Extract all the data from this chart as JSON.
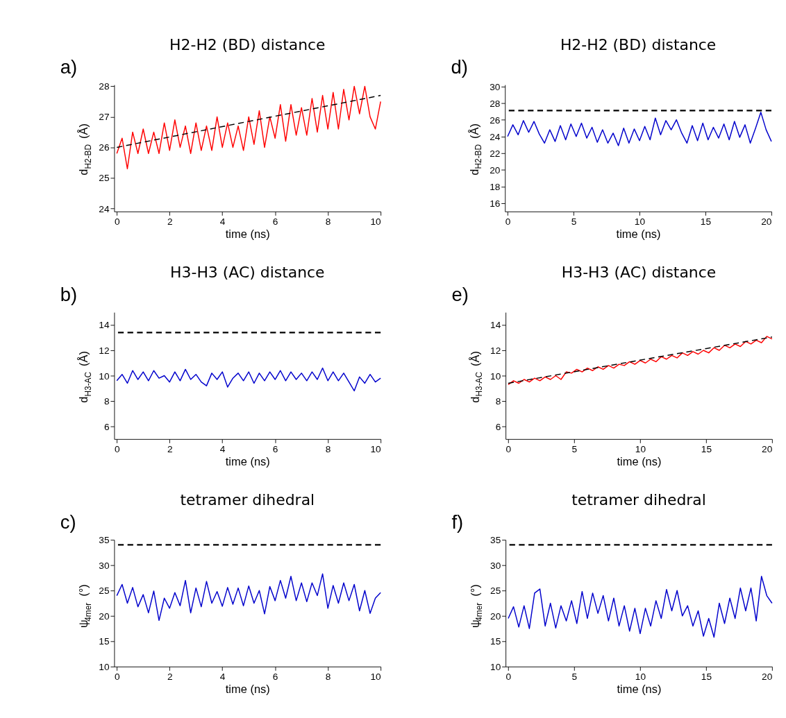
{
  "chart_data": [
    {
      "type": "line",
      "title": "H2-H2 (BD) distance",
      "xlabel": "time (ns)",
      "ylabel": "d$_{H2-BD}$ (Å)",
      "annotations": [
        "a)"
      ],
      "xlim": [
        -0.1,
        10
      ],
      "xticks": [
        0,
        2,
        4,
        6,
        8,
        10
      ],
      "ylim": [
        23.9,
        28.05
      ],
      "yticks": [
        24,
        25,
        26,
        27,
        28
      ],
      "grid": false,
      "series": [
        {
          "color": "#ff0000",
          "x": [
            0,
            0.2,
            0.4,
            0.6,
            0.8,
            1,
            1.2,
            1.4,
            1.6,
            1.8,
            2,
            2.2,
            2.4,
            2.6,
            2.8,
            3,
            3.2,
            3.4,
            3.6,
            3.8,
            4,
            4.2,
            4.4,
            4.6,
            4.8,
            5,
            5.2,
            5.4,
            5.6,
            5.8,
            6,
            6.2,
            6.4,
            6.6,
            6.8,
            7,
            7.2,
            7.4,
            7.6,
            7.8,
            8,
            8.2,
            8.4,
            8.6,
            8.8,
            9,
            9.2,
            9.4,
            9.6,
            9.8,
            10
          ],
          "values": [
            25.8,
            26.3,
            25.3,
            26.5,
            25.8,
            26.6,
            25.8,
            26.5,
            25.8,
            26.8,
            25.9,
            26.9,
            26.0,
            26.7,
            25.8,
            26.8,
            25.9,
            26.7,
            25.9,
            27.0,
            26.0,
            26.8,
            26.0,
            26.7,
            25.9,
            27.0,
            26.1,
            27.2,
            26.0,
            27.0,
            26.3,
            27.4,
            26.2,
            27.4,
            26.4,
            27.3,
            26.4,
            27.6,
            26.5,
            27.7,
            26.6,
            27.8,
            26.6,
            27.9,
            26.9,
            28.0,
            27.1,
            28.0,
            27.0,
            26.6,
            27.5
          ]
        },
        {
          "type": "line",
          "color": "#000000",
          "line_style": "dashed",
          "x": [
            0,
            10
          ],
          "values": [
            26.0,
            27.7
          ]
        }
      ]
    },
    {
      "type": "line",
      "title": "H2-H2 (BD) distance",
      "xlabel": "time (ns)",
      "ylabel": "d$_{H2-BD}$ (Å)",
      "annotations": [
        "d)"
      ],
      "xlim": [
        -0.2,
        20
      ],
      "xticks": [
        0,
        5,
        10,
        15,
        20
      ],
      "ylim": [
        15,
        30.2
      ],
      "yticks": [
        16,
        18,
        20,
        22,
        24,
        26,
        28,
        30
      ],
      "grid": false,
      "series": [
        {
          "color": "#0000cc",
          "x": [
            0,
            0.4,
            0.8,
            1.2,
            1.6,
            2,
            2.4,
            2.8,
            3.2,
            3.6,
            4,
            4.4,
            4.8,
            5.2,
            5.6,
            6,
            6.4,
            6.8,
            7.2,
            7.6,
            8,
            8.4,
            8.8,
            9.2,
            9.6,
            10,
            10.4,
            10.8,
            11.2,
            11.6,
            12,
            12.4,
            12.8,
            13.2,
            13.6,
            14,
            14.4,
            14.8,
            15.2,
            15.6,
            16,
            16.4,
            16.8,
            17.2,
            17.6,
            18,
            18.4,
            18.8,
            19.2,
            19.6,
            20
          ],
          "values": [
            24.0,
            25.4,
            24.2,
            25.9,
            24.5,
            25.8,
            24.3,
            23.2,
            24.8,
            23.4,
            25.3,
            23.6,
            25.5,
            24.0,
            25.6,
            23.8,
            25.1,
            23.3,
            24.8,
            23.2,
            24.4,
            22.9,
            25.0,
            23.2,
            24.9,
            23.5,
            25.2,
            23.6,
            26.2,
            24.2,
            25.9,
            24.8,
            26.0,
            24.4,
            23.2,
            25.3,
            23.5,
            25.6,
            23.6,
            25.1,
            23.8,
            25.5,
            23.6,
            25.8,
            23.9,
            25.4,
            23.2,
            25.0,
            26.9,
            24.8,
            23.4
          ]
        }
      ],
      "ref_lines": [
        {
          "axis": "y",
          "value": 27.1,
          "color": "#000000",
          "line_style": "dashed"
        }
      ]
    },
    {
      "type": "line",
      "title": "H3-H3 (AC) distance",
      "xlabel": "time (ns)",
      "ylabel": "d$_{H3-AC}$ (Å)",
      "annotations": [
        "b)"
      ],
      "xlim": [
        -0.1,
        10
      ],
      "xticks": [
        0,
        2,
        4,
        6,
        8,
        10
      ],
      "ylim": [
        5,
        15
      ],
      "yticks": [
        6,
        8,
        10,
        12,
        14
      ],
      "grid": false,
      "series": [
        {
          "color": "#0000cc",
          "x": [
            0,
            0.2,
            0.4,
            0.6,
            0.8,
            1,
            1.2,
            1.4,
            1.6,
            1.8,
            2,
            2.2,
            2.4,
            2.6,
            2.8,
            3,
            3.2,
            3.4,
            3.6,
            3.8,
            4,
            4.2,
            4.4,
            4.6,
            4.8,
            5,
            5.2,
            5.4,
            5.6,
            5.8,
            6,
            6.2,
            6.4,
            6.6,
            6.8,
            7,
            7.2,
            7.4,
            7.6,
            7.8,
            8,
            8.2,
            8.4,
            8.6,
            8.8,
            9,
            9.2,
            9.4,
            9.6,
            9.8,
            10
          ],
          "values": [
            9.6,
            10.1,
            9.4,
            10.4,
            9.7,
            10.3,
            9.6,
            10.4,
            9.8,
            10.0,
            9.5,
            10.3,
            9.6,
            10.5,
            9.7,
            10.1,
            9.5,
            9.2,
            10.2,
            9.7,
            10.3,
            9.1,
            9.8,
            10.2,
            9.6,
            10.3,
            9.4,
            10.2,
            9.6,
            10.3,
            9.7,
            10.4,
            9.6,
            10.3,
            9.7,
            10.2,
            9.6,
            10.3,
            9.7,
            10.6,
            9.6,
            10.3,
            9.6,
            10.2,
            9.5,
            8.8,
            9.9,
            9.4,
            10.1,
            9.5,
            9.8
          ]
        }
      ],
      "ref_lines": [
        {
          "axis": "y",
          "value": 13.4,
          "color": "#000000",
          "line_style": "dashed"
        }
      ]
    },
    {
      "type": "line",
      "title": "H3-H3 (AC) distance",
      "xlabel": "time (ns)",
      "ylabel": "d$_{H3-AC}$ (Å)",
      "annotations": [
        "e)"
      ],
      "xlim": [
        -0.2,
        20
      ],
      "xticks": [
        0,
        5,
        10,
        15,
        20
      ],
      "ylim": [
        5,
        15
      ],
      "yticks": [
        6,
        8,
        10,
        12,
        14
      ],
      "grid": false,
      "series": [
        {
          "color": "#ff0000",
          "x": [
            0,
            0.4,
            0.8,
            1.2,
            1.6,
            2,
            2.4,
            2.8,
            3.2,
            3.6,
            4,
            4.4,
            4.8,
            5.2,
            5.6,
            6,
            6.4,
            6.8,
            7.2,
            7.6,
            8,
            8.4,
            8.8,
            9.2,
            9.6,
            10,
            10.4,
            10.8,
            11.2,
            11.6,
            12,
            12.4,
            12.8,
            13.2,
            13.6,
            14,
            14.4,
            14.8,
            15.2,
            15.6,
            16,
            16.4,
            16.8,
            17.2,
            17.6,
            18,
            18.4,
            18.8,
            19.2,
            19.6,
            20
          ],
          "values": [
            9.3,
            9.6,
            9.4,
            9.7,
            9.5,
            9.8,
            9.6,
            9.9,
            9.7,
            10.0,
            9.7,
            10.3,
            10.2,
            10.5,
            10.3,
            10.6,
            10.4,
            10.7,
            10.5,
            10.8,
            10.6,
            10.9,
            10.8,
            11.1,
            10.9,
            11.2,
            11.0,
            11.3,
            11.1,
            11.5,
            11.3,
            11.6,
            11.4,
            11.8,
            11.6,
            11.9,
            11.7,
            12.0,
            11.8,
            12.2,
            12.0,
            12.4,
            12.2,
            12.5,
            12.3,
            12.7,
            12.5,
            12.8,
            12.6,
            13.1,
            12.9
          ]
        },
        {
          "type": "line",
          "color": "#000000",
          "line_style": "dashed",
          "x": [
            0,
            20
          ],
          "values": [
            9.4,
            13.05
          ]
        }
      ]
    },
    {
      "type": "line",
      "title": "tetramer dihedral",
      "xlabel": "time (ns)",
      "ylabel": "ψ$_{4mer}$ (°)",
      "annotations": [
        "c)"
      ],
      "xlim": [
        -0.1,
        10
      ],
      "xticks": [
        0,
        2,
        4,
        6,
        8,
        10
      ],
      "ylim": [
        10,
        35
      ],
      "yticks": [
        10,
        15,
        20,
        25,
        30,
        35
      ],
      "grid": false,
      "series": [
        {
          "color": "#0000cc",
          "x": [
            0,
            0.2,
            0.4,
            0.6,
            0.8,
            1,
            1.2,
            1.4,
            1.6,
            1.8,
            2,
            2.2,
            2.4,
            2.6,
            2.8,
            3,
            3.2,
            3.4,
            3.6,
            3.8,
            4,
            4.2,
            4.4,
            4.6,
            4.8,
            5,
            5.2,
            5.4,
            5.6,
            5.8,
            6,
            6.2,
            6.4,
            6.6,
            6.8,
            7,
            7.2,
            7.4,
            7.6,
            7.8,
            8,
            8.2,
            8.4,
            8.6,
            8.8,
            9,
            9.2,
            9.4,
            9.6,
            9.8,
            10
          ],
          "values": [
            24.0,
            26.2,
            22.5,
            25.6,
            21.8,
            24.2,
            20.6,
            24.9,
            19.1,
            23.5,
            21.5,
            24.6,
            22.0,
            27.0,
            20.6,
            25.5,
            21.8,
            26.8,
            22.5,
            24.8,
            21.9,
            25.6,
            22.3,
            25.5,
            22.0,
            25.9,
            22.5,
            25.0,
            20.4,
            25.8,
            23.0,
            27.0,
            23.5,
            27.8,
            23.0,
            26.5,
            22.8,
            26.5,
            24.0,
            28.3,
            21.5,
            26.0,
            22.5,
            26.5,
            23.0,
            26.2,
            21.0,
            25.0,
            20.5,
            23.5,
            24.6
          ]
        }
      ],
      "ref_lines": [
        {
          "axis": "y",
          "value": 34,
          "color": "#000000",
          "line_style": "dashed"
        }
      ]
    },
    {
      "type": "line",
      "title": "tetramer dihedral",
      "xlabel": "time (ns)",
      "ylabel": "ψ$_{4mer}$ (°)",
      "annotations": [
        "f)"
      ],
      "xlim": [
        -0.2,
        20
      ],
      "xticks": [
        0,
        5,
        10,
        15,
        20
      ],
      "ylim": [
        10,
        35
      ],
      "yticks": [
        10,
        15,
        20,
        25,
        30,
        35
      ],
      "grid": false,
      "series": [
        {
          "color": "#0000cc",
          "x": [
            0,
            0.4,
            0.8,
            1.2,
            1.6,
            2,
            2.4,
            2.8,
            3.2,
            3.6,
            4,
            4.4,
            4.8,
            5.2,
            5.6,
            6,
            6.4,
            6.8,
            7.2,
            7.6,
            8,
            8.4,
            8.8,
            9.2,
            9.6,
            10,
            10.4,
            10.8,
            11.2,
            11.6,
            12,
            12.4,
            12.8,
            13.2,
            13.6,
            14,
            14.4,
            14.8,
            15.2,
            15.6,
            16,
            16.4,
            16.8,
            17.2,
            17.6,
            18,
            18.4,
            18.8,
            19.2,
            19.6,
            20
          ],
          "values": [
            19.5,
            21.8,
            17.8,
            22.0,
            17.5,
            24.5,
            25.3,
            18.0,
            22.5,
            17.6,
            22.0,
            19.0,
            23.0,
            18.5,
            24.8,
            19.5,
            24.5,
            20.5,
            24.0,
            19.0,
            23.5,
            18.0,
            22.0,
            17.0,
            21.5,
            16.5,
            21.5,
            18.0,
            23.0,
            19.5,
            25.2,
            21.0,
            25.0,
            20.0,
            22.0,
            18.0,
            21.0,
            16.0,
            19.5,
            15.8,
            22.5,
            18.5,
            23.5,
            19.5,
            25.5,
            21.0,
            25.5,
            19.0,
            27.8,
            24.0,
            22.5
          ]
        }
      ],
      "ref_lines": [
        {
          "axis": "y",
          "value": 34,
          "color": "#000000",
          "line_style": "dashed"
        }
      ]
    }
  ]
}
